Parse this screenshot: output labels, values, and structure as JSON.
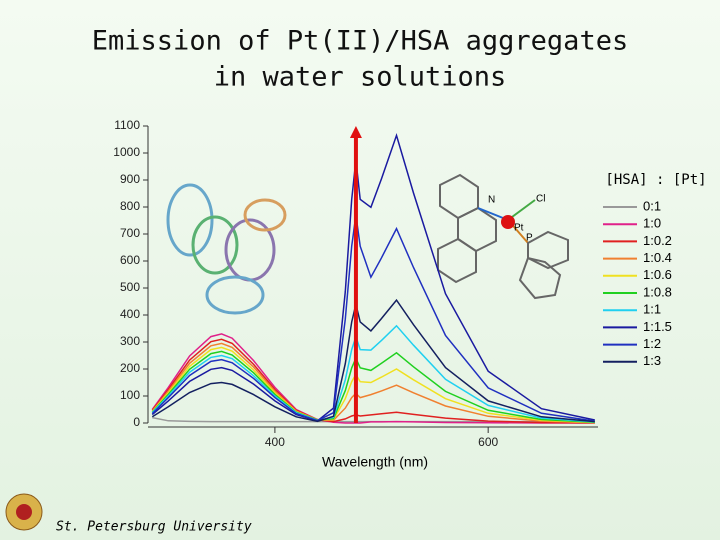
{
  "chart_data": {
    "type": "line",
    "title": [
      "Emission of Pt(II)/HSA aggregates",
      "in water solutions"
    ],
    "xlabel": "Wavelength (nm)",
    "legend_title": "[HSA] : [Pt]",
    "legend": "right",
    "footer": "St. Petersburg University",
    "structure_labels": [
      "N",
      "Cl",
      "Pt",
      "P"
    ],
    "x": [
      285,
      300,
      320,
      340,
      350,
      360,
      380,
      400,
      420,
      440,
      455,
      466,
      472,
      476,
      480,
      490,
      500,
      514,
      530,
      560,
      600,
      650,
      700
    ],
    "xlim": [
      281,
      703
    ],
    "xticks": [
      400,
      600
    ],
    "ylim": [
      0,
      1100
    ],
    "yticks": [
      0,
      100,
      200,
      300,
      400,
      500,
      600,
      700,
      800,
      900,
      1000,
      1100
    ],
    "series": [
      {
        "name": "0:1",
        "color": "#999999",
        "values": [
          20,
          8,
          6,
          5,
          5,
          5,
          5,
          5,
          5,
          5,
          5,
          5,
          5,
          5,
          5,
          5,
          5,
          5,
          5,
          5,
          5,
          5,
          5
        ]
      },
      {
        "name": "1:0",
        "color": "#e0208a",
        "values": [
          50,
          132,
          248,
          320,
          330,
          314,
          231,
          132,
          50,
          13,
          3,
          0,
          0,
          0,
          0,
          4,
          4,
          5,
          4,
          2,
          1,
          0,
          0
        ]
      },
      {
        "name": "1:0.2",
        "color": "#e02020",
        "values": [
          47,
          124,
          233,
          301,
          310,
          295,
          217,
          124,
          47,
          12,
          5,
          15,
          26,
          30,
          26,
          30,
          34,
          40,
          32,
          18,
          7,
          2,
          0
        ]
      },
      {
        "name": "1:0.4",
        "color": "#f08030",
        "values": [
          44,
          118,
          221,
          286,
          295,
          280,
          207,
          118,
          44,
          12,
          10,
          55,
          94,
          110,
          94,
          105,
          119,
          140,
          112,
          63,
          25,
          7,
          1
        ]
      },
      {
        "name": "1:0.6",
        "color": "#f0e020",
        "values": [
          42,
          112,
          210,
          272,
          280,
          266,
          196,
          112,
          42,
          11,
          13,
          90,
          153,
          180,
          153,
          150,
          170,
          200,
          160,
          90,
          36,
          10,
          2
        ]
      },
      {
        "name": "1:0.8",
        "color": "#20d020",
        "values": [
          40,
          106,
          199,
          257,
          265,
          252,
          186,
          106,
          40,
          11,
          16,
          120,
          204,
          240,
          204,
          195,
          221,
          260,
          208,
          117,
          47,
          13,
          3
        ]
      },
      {
        "name": "1:1",
        "color": "#20d0f0",
        "values": [
          38,
          100,
          188,
          243,
          250,
          238,
          175,
          100,
          38,
          10,
          21,
          160,
          272,
          320,
          272,
          270,
          306,
          360,
          288,
          162,
          65,
          18,
          4
        ]
      },
      {
        "name": "1:1.5",
        "color": "#1a1aa0",
        "values": [
          31,
          82,
          154,
          199,
          205,
          195,
          144,
          82,
          31,
          8,
          55,
          487,
          828,
          974,
          828,
          799,
          905,
          1065,
          852,
          479,
          192,
          53,
          11
        ]
      },
      {
        "name": "1:2",
        "color": "#2030c0",
        "values": [
          35,
          94,
          176,
          228,
          235,
          223,
          165,
          94,
          35,
          9,
          38,
          385,
          655,
          770,
          655,
          540,
          612,
          720,
          576,
          324,
          130,
          36,
          7
        ]
      },
      {
        "name": "1:3",
        "color": "#142060",
        "values": [
          23,
          60,
          113,
          146,
          150,
          143,
          105,
          60,
          23,
          6,
          25,
          220,
          374,
          440,
          374,
          341,
          387,
          455,
          364,
          205,
          82,
          23,
          5
        ]
      }
    ]
  }
}
